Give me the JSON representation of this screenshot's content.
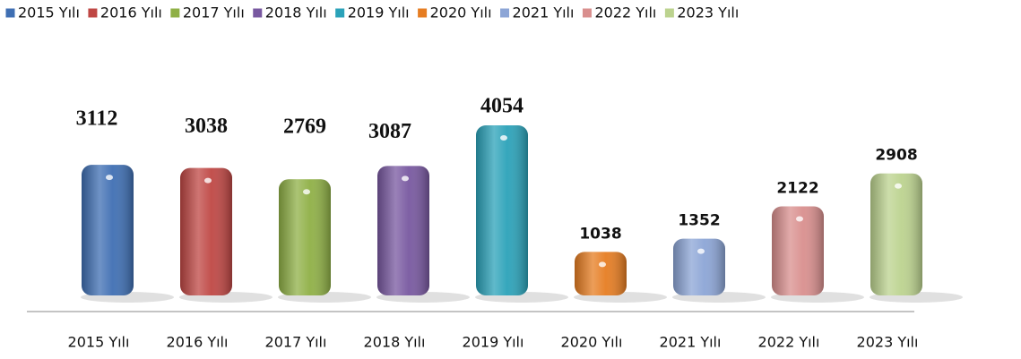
{
  "chart_data": {
    "type": "bar",
    "categories": [
      "2015 Yılı",
      "2016 Yılı",
      "2017 Yılı",
      "2018 Yılı",
      "2019 Yılı",
      "2020 Yılı",
      "2021 Yılı",
      "2022 Yılı",
      "2023 Yılı"
    ],
    "values": [
      3112,
      3038,
      2769,
      3087,
      4054,
      1038,
      1352,
      2122,
      2908
    ],
    "colors": [
      "#3f6fb3",
      "#bf4744",
      "#8fb046",
      "#7858a0",
      "#2ba2b9",
      "#e67d22",
      "#8ca5d6",
      "#d98f8e",
      "#bcd38f"
    ],
    "legend": "top"
  }
}
